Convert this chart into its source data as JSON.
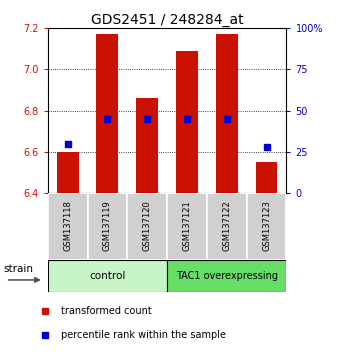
{
  "title": "GDS2451 / 248284_at",
  "samples": [
    "GSM137118",
    "GSM137119",
    "GSM137120",
    "GSM137121",
    "GSM137122",
    "GSM137123"
  ],
  "red_bar_tops": [
    6.6,
    7.17,
    6.86,
    7.09,
    7.17,
    6.55
  ],
  "red_bar_bottom": 6.4,
  "blue_percentiles": [
    30,
    45,
    45,
    45,
    45,
    28
  ],
  "ylim_left": [
    6.4,
    7.2
  ],
  "ylim_right": [
    0,
    100
  ],
  "yticks_left": [
    6.4,
    6.6,
    6.8,
    7.0,
    7.2
  ],
  "yticks_right": [
    0,
    25,
    50,
    75,
    100
  ],
  "bar_color": "#cc1100",
  "blue_color": "#0000cc",
  "bar_width": 0.55,
  "legend_red_label": "transformed count",
  "legend_blue_label": "percentile rank within the sample",
  "title_fontsize": 10,
  "tick_fontsize": 7,
  "ctrl_color": "#c8f5c8",
  "tac1_color": "#66dd66",
  "sample_box_color": "#d0d0d0"
}
